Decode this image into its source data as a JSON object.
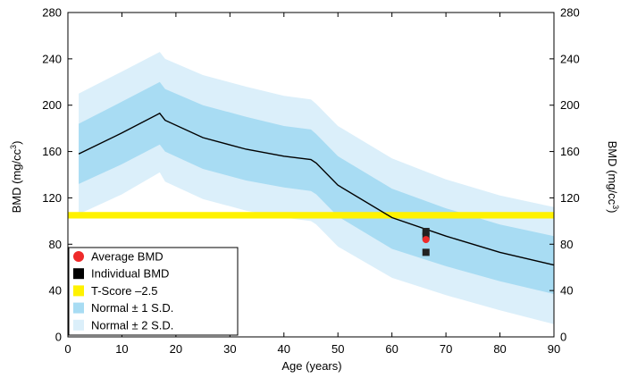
{
  "chart_data": {
    "type": "area",
    "title": "",
    "xlabel": "Age (years)",
    "ylabel_left": "BMD (mg/cc",
    "ylabel_right": "BMD (mg/cc",
    "ylabel_superscript": "3",
    "ylabel_close": ")",
    "xlim": [
      0,
      90
    ],
    "ylim": [
      0,
      280
    ],
    "x_ticks": [
      "0",
      "10",
      "20",
      "30",
      "40",
      "50",
      "60",
      "70",
      "80",
      "90"
    ],
    "y_ticks": [
      "0",
      "40",
      "80",
      "120",
      "160",
      "200",
      "240",
      "280"
    ],
    "x": [
      2,
      10,
      17,
      18,
      25,
      33,
      40,
      45,
      46,
      50,
      60,
      70,
      80,
      90
    ],
    "series": [
      {
        "name": "Average BMD",
        "kind": "line",
        "values": [
          158,
          176,
          193,
          187,
          172,
          162,
          156,
          153,
          150,
          131,
          103,
          87,
          73,
          62
        ]
      },
      {
        "name": "Normal ± 1 S.D.",
        "kind": "band",
        "upper": [
          184,
          203,
          220,
          214,
          200,
          190,
          182,
          179,
          175,
          156,
          128,
          111,
          97,
          87
        ],
        "lower": [
          132,
          149,
          166,
          160,
          145,
          135,
          129,
          126,
          123,
          104,
          76,
          61,
          48,
          37
        ]
      },
      {
        "name": "Normal ± 2 S.D.",
        "kind": "band",
        "upper": [
          210,
          229,
          246,
          240,
          226,
          216,
          208,
          205,
          201,
          182,
          154,
          136,
          122,
          112
        ],
        "lower": [
          106,
          123,
          142,
          134,
          119,
          109,
          103,
          100,
          97,
          78,
          51,
          36,
          23,
          11
        ]
      }
    ],
    "t_score_line": {
      "name": "T-Score –2.5",
      "value": 105
    },
    "patient_points": {
      "age": 66.3,
      "average_bmd": 84,
      "individual_bmd": [
        91,
        87,
        73
      ]
    },
    "legend": [
      {
        "label": "Average BMD",
        "marker": "circle",
        "color": "#ee2a2a"
      },
      {
        "label": "Individual BMD",
        "marker": "square",
        "color": "#000000"
      },
      {
        "label": "T-Score –2.5",
        "marker": "square",
        "color": "#fff200"
      },
      {
        "label": "Normal ± 1 S.D.",
        "marker": "square",
        "color": "#a8dcf3"
      },
      {
        "label": "Normal ± 2 S.D.",
        "marker": "square",
        "color": "#dbeffa"
      }
    ],
    "legend_position": "bottom-left",
    "grid": false,
    "colors": {
      "band_1sd": "#a8dcf3",
      "band_2sd": "#dbeffa",
      "tscore": "#fff200",
      "line": "#000000",
      "average_point": "#ee2a2a",
      "individual_point": "#222222"
    }
  }
}
